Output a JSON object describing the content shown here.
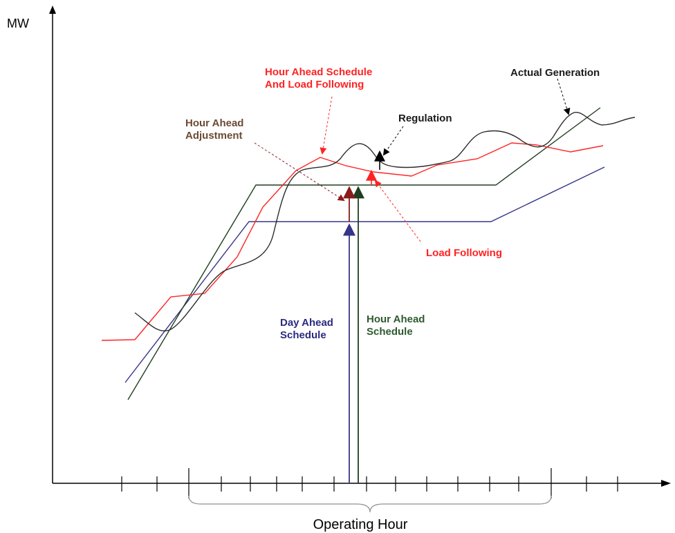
{
  "diagram": {
    "y_axis_label": "MW",
    "bracket_label": "Operating Hour",
    "callouts": {
      "hour_ahead_sched_lf": [
        "Hour Ahead Schedule",
        "And Load Following"
      ],
      "actual_generation": [
        "Actual Generation"
      ],
      "regulation": [
        "Regulation"
      ],
      "hour_ahead_adjustment": [
        "Hour Ahead",
        "Adjustment"
      ],
      "load_following": [
        "Load Following"
      ],
      "day_ahead_schedule": [
        "Day Ahead",
        "Schedule"
      ],
      "hour_ahead_schedule": [
        "Hour Ahead",
        "Schedule"
      ]
    },
    "colors": {
      "axis": "#000000",
      "day_ahead": "#35358a",
      "hour_ahead": "#1f3d1f",
      "red": "#ff2222",
      "actual": "#2b2b2b",
      "adjustment": "#8b1a1a",
      "bracket": "#808080",
      "label_black": "#1a1a1a",
      "label_brown": "#6b4a34",
      "label_navy": "#2a2a80",
      "label_green": "#2e5a2e"
    }
  }
}
